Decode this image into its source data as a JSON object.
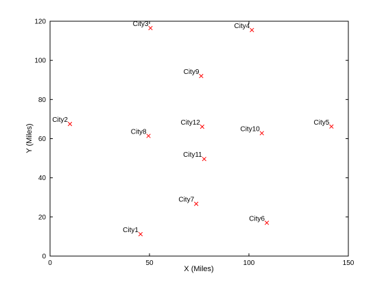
{
  "chart_data": {
    "type": "scatter",
    "title": "",
    "xlabel": "X (Miles)",
    "ylabel": "Y (Miles)",
    "xlim": [
      0,
      150
    ],
    "ylim": [
      0,
      120
    ],
    "xticks": [
      0,
      50,
      100,
      150
    ],
    "yticks": [
      0,
      20,
      40,
      60,
      80,
      100,
      120
    ],
    "grid": false,
    "marker": "x",
    "marker_color": "#ff0000",
    "points": [
      {
        "label": "City1",
        "x": 45.5,
        "y": 11.2
      },
      {
        "label": "City2",
        "x": 10,
        "y": 67.5
      },
      {
        "label": "City3",
        "x": 50.5,
        "y": 116.5
      },
      {
        "label": "City4",
        "x": 101.5,
        "y": 115.5
      },
      {
        "label": "City5",
        "x": 141.5,
        "y": 66.2
      },
      {
        "label": "City6",
        "x": 109,
        "y": 17
      },
      {
        "label": "City7",
        "x": 73.5,
        "y": 26.7
      },
      {
        "label": "City8",
        "x": 49.5,
        "y": 61.4
      },
      {
        "label": "City9",
        "x": 76,
        "y": 92
      },
      {
        "label": "City10",
        "x": 106.5,
        "y": 62.8
      },
      {
        "label": "City11",
        "x": 77.5,
        "y": 49.6
      },
      {
        "label": "City12",
        "x": 76.5,
        "y": 66.1
      }
    ]
  }
}
